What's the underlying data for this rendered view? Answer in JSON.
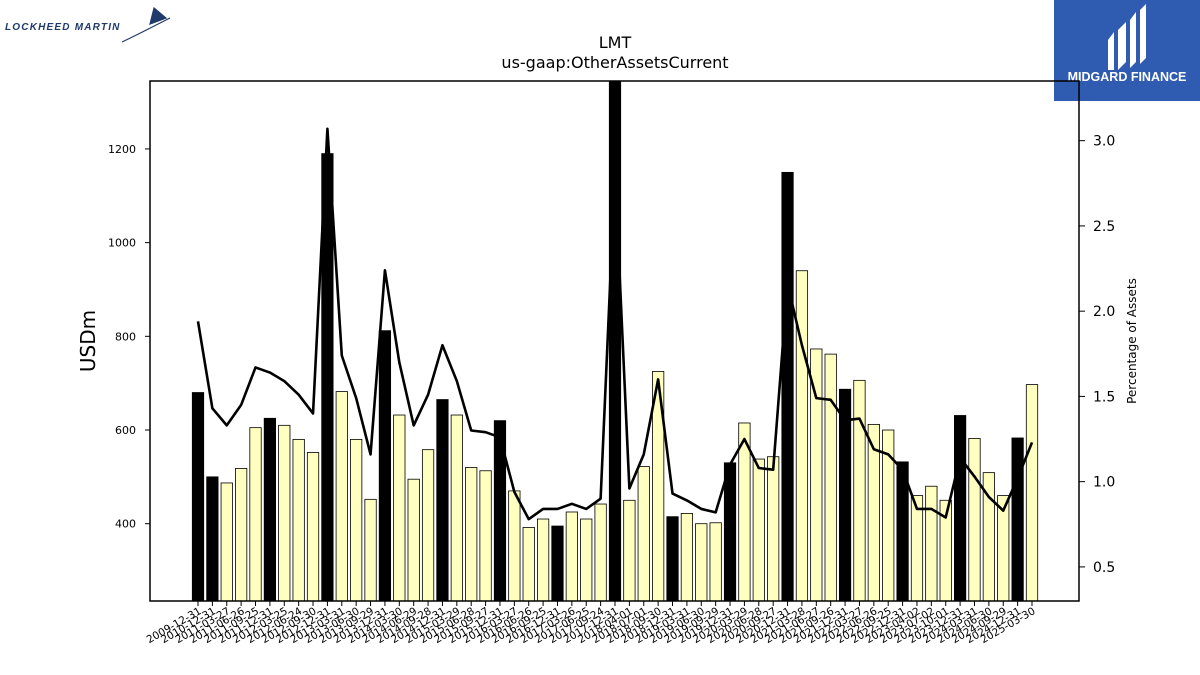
{
  "brand": {
    "left_logo_text": "LOCKHEED MARTIN",
    "right_logo_text": "MIDGARD FINANCE",
    "right_logo_bg": "#2f5bb0"
  },
  "chart_data": {
    "type": "bar",
    "title": "LMT",
    "subtitle": "us-gaap:OtherAssetsCurrent",
    "ylabel": "USDm",
    "y2label": "Percentage of Assets",
    "ylim": [
      235,
      1345
    ],
    "y2lim": [
      0.3,
      3.35
    ],
    "yticks": [
      400,
      600,
      800,
      1000,
      1200
    ],
    "y2ticks": [
      0.5,
      1.0,
      1.5,
      2.0,
      2.5,
      3.0
    ],
    "y2tick_labels": [
      "0.5",
      "1.0",
      "1.5",
      "2.0",
      "2.5",
      "3.0"
    ],
    "colors": {
      "annual_bar": "#000000",
      "quarter_bar": "#ffffc0",
      "bar_edge": "#000000",
      "line": "#000000"
    },
    "categories": [
      "2009-12-31",
      "2010-12-31",
      "2011-03-27",
      "2011-06-26",
      "2011-09-25",
      "2011-12-31",
      "2012-03-25",
      "2012-06-24",
      "2012-09-30",
      "2012-12-31",
      "2013-03-31",
      "2013-06-30",
      "2013-09-29",
      "2013-12-31",
      "2014-03-30",
      "2014-06-29",
      "2014-09-28",
      "2014-12-31",
      "2015-03-29",
      "2015-06-28",
      "2015-09-27",
      "2015-12-31",
      "2016-03-27",
      "2016-06-26",
      "2016-09-25",
      "2016-12-31",
      "2017-03-26",
      "2017-06-25",
      "2017-09-24",
      "2017-12-31",
      "2018-04-01",
      "2018-07-01",
      "2018-09-30",
      "2018-12-31",
      "2019-03-31",
      "2019-06-30",
      "2019-09-29",
      "2019-12-31",
      "2020-03-29",
      "2020-06-28",
      "2020-09-27",
      "2020-12-31",
      "2021-03-28",
      "2021-06-27",
      "2021-09-26",
      "2021-12-31",
      "2022-03-27",
      "2022-06-26",
      "2022-09-25",
      "2022-12-31",
      "2023-04-02",
      "2023-07-02",
      "2023-10-01",
      "2023-12-31",
      "2024-03-31",
      "2024-06-30",
      "2024-09-29",
      "2024-12-31",
      "2025-03-30"
    ],
    "xtick_labels": [
      "2009-12-31",
      "2010-12-31",
      "2011-03-27",
      "2011-06-26",
      "2011-09-25",
      "2011-12-31",
      "2012-03-25",
      "2012-06-24",
      "2012-09-30",
      "2012-12-31",
      "2013-03-31",
      "2013-06-30",
      "2013-09-29",
      "2013-12-31",
      "2014-03-30",
      "2014-06-29",
      "2014-09-28",
      "2014-12-31",
      "2015-03-29",
      "2015-06-28",
      "2015-09-27",
      "2015-12-31",
      "2016-03-27",
      "2016-06-26",
      "2016-09-25",
      "2016-12-31",
      "2017-03-26",
      "2017-06-25",
      "2017-09-24",
      "2017-12-31",
      "2018-04-01",
      "2018-07-01",
      "2018-09-30",
      "2018-12-31",
      "2019-03-31",
      "2019-06-30",
      "2019-09-29",
      "2019-12-31",
      "2020-03-29",
      "2020-06-28",
      "2020-09-27",
      "2020-12-31",
      "2021-03-28",
      "2021-06-27",
      "2021-09-26",
      "2021-12-31",
      "2022-03-27",
      "2022-06-26",
      "2022-09-25",
      "2022-12-31",
      "2023-04-02",
      "2023-07-02",
      "2023-10-01",
      "2023-12-31",
      "2024-03-31",
      "2024-06-30",
      "2024-09-29",
      "2024-12-31",
      "2025-03-30"
    ],
    "annual": [
      1,
      1,
      0,
      0,
      0,
      1,
      0,
      0,
      0,
      1,
      0,
      0,
      0,
      1,
      0,
      0,
      0,
      1,
      0,
      0,
      0,
      1,
      0,
      0,
      0,
      1,
      0,
      0,
      0,
      1,
      0,
      0,
      0,
      1,
      0,
      0,
      0,
      1,
      0,
      0,
      0,
      1,
      0,
      0,
      0,
      1,
      0,
      0,
      0,
      1,
      0,
      0,
      0,
      1,
      0,
      0,
      0,
      1,
      0
    ],
    "series": [
      {
        "kind": "bar",
        "values": [
          680,
          500,
          487,
          518,
          605,
          625,
          610,
          580,
          552,
          1190,
          682,
          580,
          452,
          812,
          632,
          495,
          558,
          665,
          632,
          520,
          513,
          620,
          470,
          392,
          410,
          395,
          425,
          410,
          442,
          1430,
          450,
          522,
          725,
          415,
          422,
          400,
          402,
          530,
          615,
          538,
          543,
          1150,
          940,
          773,
          762,
          687,
          706,
          612,
          600,
          532,
          460,
          480,
          450,
          631,
          582,
          509,
          460,
          583,
          697
        ]
      },
      {
        "kind": "line",
        "values": [
          1.94,
          1.43,
          1.33,
          1.45,
          1.67,
          1.64,
          1.59,
          1.51,
          1.4,
          3.07,
          1.74,
          1.49,
          1.16,
          2.24,
          1.7,
          1.33,
          1.51,
          1.8,
          1.59,
          1.3,
          1.29,
          1.26,
          0.94,
          0.78,
          0.84,
          0.84,
          0.87,
          0.84,
          0.9,
          2.81,
          0.96,
          1.16,
          1.6,
          0.93,
          0.89,
          0.84,
          0.82,
          1.1,
          1.25,
          1.08,
          1.07,
          2.16,
          1.8,
          1.49,
          1.48,
          1.36,
          1.37,
          1.19,
          1.16,
          1.07,
          0.84,
          0.84,
          0.79,
          1.14,
          1.03,
          0.91,
          0.83,
          1.02,
          1.23
        ]
      }
    ]
  }
}
